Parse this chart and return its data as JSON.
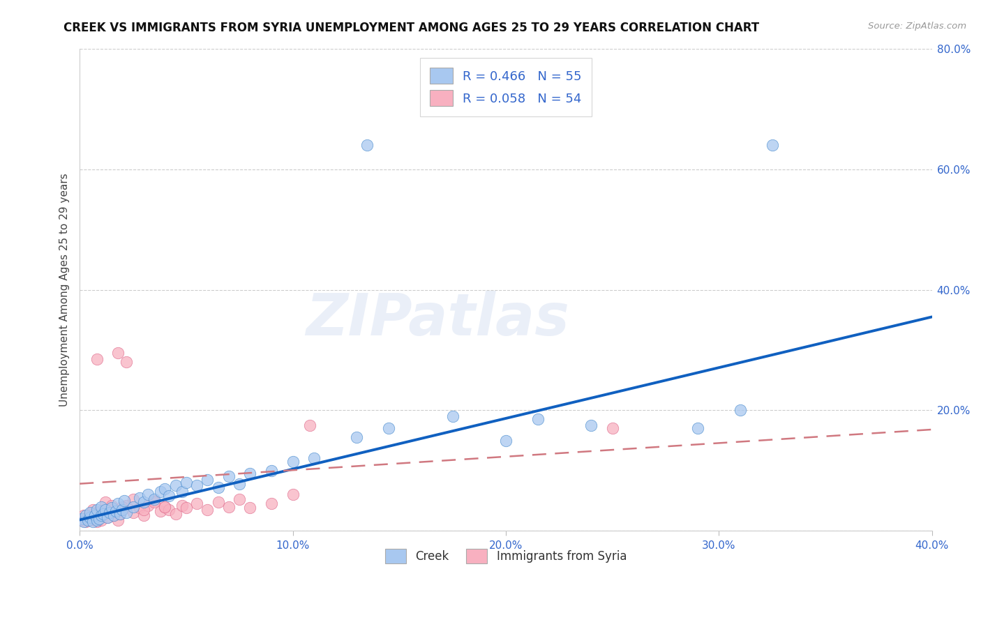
{
  "title": "CREEK VS IMMIGRANTS FROM SYRIA UNEMPLOYMENT AMONG AGES 25 TO 29 YEARS CORRELATION CHART",
  "source_text": "Source: ZipAtlas.com",
  "ylabel": "Unemployment Among Ages 25 to 29 years",
  "xlim": [
    0.0,
    0.4
  ],
  "ylim": [
    0.0,
    0.8
  ],
  "xticks": [
    0.0,
    0.1,
    0.2,
    0.3,
    0.4
  ],
  "yticks_right": [
    0.0,
    0.2,
    0.4,
    0.6,
    0.8
  ],
  "xticklabels": [
    "0.0%",
    "10.0%",
    "20.0%",
    "30.0%",
    "40.0%"
  ],
  "yticklabels_right": [
    "",
    "20.0%",
    "40.0%",
    "60.0%",
    "80.0%"
  ],
  "blue_color": "#a8c8f0",
  "pink_color": "#f8b0c0",
  "blue_edge_color": "#5090d0",
  "pink_edge_color": "#e07090",
  "blue_line_color": "#1060c0",
  "pink_line_color": "#d07880",
  "watermark": "ZIPatlas",
  "blue_line_x0": 0.0,
  "blue_line_y0": 0.018,
  "blue_line_x1": 0.4,
  "blue_line_y1": 0.355,
  "pink_line_x0": 0.0,
  "pink_line_y0": 0.078,
  "pink_line_x1": 0.4,
  "pink_line_y1": 0.168,
  "blue_points_x": [
    0.001,
    0.002,
    0.003,
    0.004,
    0.005,
    0.005,
    0.006,
    0.007,
    0.008,
    0.008,
    0.009,
    0.01,
    0.01,
    0.011,
    0.012,
    0.013,
    0.014,
    0.015,
    0.016,
    0.017,
    0.018,
    0.019,
    0.02,
    0.021,
    0.022,
    0.025,
    0.028,
    0.03,
    0.032,
    0.035,
    0.038,
    0.04,
    0.042,
    0.045,
    0.048,
    0.05,
    0.055,
    0.06,
    0.065,
    0.07,
    0.075,
    0.08,
    0.09,
    0.1,
    0.11,
    0.13,
    0.145,
    0.175,
    0.2,
    0.215,
    0.24,
    0.29,
    0.31,
    0.135,
    0.325
  ],
  "blue_points_y": [
    0.02,
    0.015,
    0.025,
    0.018,
    0.022,
    0.03,
    0.015,
    0.025,
    0.018,
    0.035,
    0.02,
    0.025,
    0.04,
    0.028,
    0.035,
    0.022,
    0.03,
    0.038,
    0.025,
    0.032,
    0.045,
    0.028,
    0.035,
    0.05,
    0.03,
    0.04,
    0.055,
    0.048,
    0.06,
    0.052,
    0.065,
    0.07,
    0.058,
    0.075,
    0.065,
    0.08,
    0.075,
    0.085,
    0.072,
    0.09,
    0.078,
    0.095,
    0.1,
    0.115,
    0.12,
    0.155,
    0.17,
    0.19,
    0.15,
    0.185,
    0.175,
    0.17,
    0.2,
    0.64,
    0.64
  ],
  "pink_points_x": [
    0.001,
    0.002,
    0.003,
    0.004,
    0.005,
    0.005,
    0.006,
    0.007,
    0.008,
    0.008,
    0.009,
    0.01,
    0.01,
    0.011,
    0.012,
    0.013,
    0.014,
    0.015,
    0.016,
    0.017,
    0.018,
    0.019,
    0.02,
    0.022,
    0.025,
    0.028,
    0.03,
    0.032,
    0.035,
    0.038,
    0.04,
    0.042,
    0.045,
    0.048,
    0.05,
    0.055,
    0.06,
    0.065,
    0.07,
    0.075,
    0.08,
    0.09,
    0.1,
    0.012,
    0.015,
    0.02,
    0.025,
    0.03,
    0.035,
    0.04,
    0.022,
    0.018,
    0.008,
    0.25,
    0.108
  ],
  "pink_points_y": [
    0.018,
    0.025,
    0.015,
    0.022,
    0.028,
    0.018,
    0.035,
    0.022,
    0.03,
    0.015,
    0.025,
    0.032,
    0.018,
    0.028,
    0.035,
    0.022,
    0.03,
    0.038,
    0.025,
    0.032,
    0.018,
    0.028,
    0.035,
    0.042,
    0.03,
    0.038,
    0.025,
    0.042,
    0.05,
    0.032,
    0.04,
    0.035,
    0.028,
    0.042,
    0.038,
    0.045,
    0.035,
    0.048,
    0.04,
    0.052,
    0.038,
    0.045,
    0.06,
    0.048,
    0.042,
    0.04,
    0.052,
    0.035,
    0.048,
    0.04,
    0.28,
    0.295,
    0.285,
    0.17,
    0.175
  ]
}
